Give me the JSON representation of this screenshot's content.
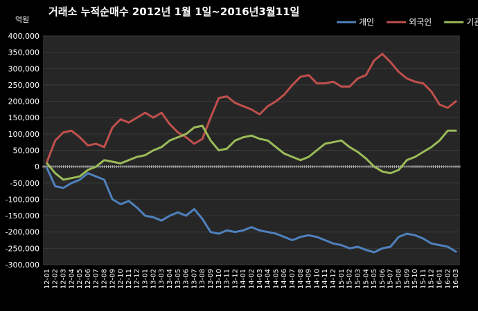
{
  "chart_data": {
    "type": "line",
    "title": "거래소 누적순매수 2012년 1월 1일~2016년3월11일",
    "ylabel": "억원",
    "xlabel": "",
    "ylim": [
      -300000,
      400000
    ],
    "yticks": [
      400000,
      350000,
      300000,
      250000,
      200000,
      150000,
      100000,
      50000,
      0,
      -50000,
      -100000,
      -150000,
      -200000,
      -250000,
      -300000
    ],
    "ytick_labels": [
      "400,000",
      "350,000",
      "300,000",
      "250,000",
      "200,000",
      "150,000",
      "100,000",
      "50,000",
      "0",
      "-50,000",
      "-100,000",
      "-150,000",
      "-200,000",
      "-250,000",
      "-300,000"
    ],
    "x": [
      "12-01",
      "12-02",
      "12-03",
      "12-04",
      "12-05",
      "12-06",
      "12-07",
      "12-08",
      "12-09",
      "12-10",
      "12-11",
      "12-12",
      "13-01",
      "13-02",
      "13-03",
      "13-04",
      "13-05",
      "13-06",
      "13-07",
      "13-08",
      "13-09",
      "13-10",
      "13-11",
      "13-12",
      "14-01",
      "14-02",
      "14-03",
      "14-04",
      "14-05",
      "14-06",
      "14-07",
      "14-08",
      "14-09",
      "14-10",
      "14-11",
      "14-12",
      "15-01",
      "15-02",
      "15-03",
      "15-04",
      "15-05",
      "15-06",
      "15-07",
      "15-08",
      "15-09",
      "15-10",
      "15-11",
      "15-12",
      "16-01",
      "16-02",
      "16-03"
    ],
    "grid": true,
    "legend_position": "top-right",
    "background": "#262626",
    "series": [
      {
        "name": "개인",
        "color": "#4f81bd",
        "values": [
          -5000,
          -60000,
          -65000,
          -50000,
          -40000,
          -20000,
          -30000,
          -40000,
          -100000,
          -115000,
          -105000,
          -125000,
          -150000,
          -155000,
          -165000,
          -150000,
          -140000,
          -150000,
          -130000,
          -160000,
          -200000,
          -205000,
          -195000,
          -200000,
          -195000,
          -185000,
          -195000,
          -200000,
          -205000,
          -215000,
          -225000,
          -215000,
          -210000,
          -215000,
          -225000,
          -235000,
          -240000,
          -250000,
          -245000,
          -255000,
          -262000,
          -250000,
          -245000,
          -215000,
          -205000,
          -210000,
          -220000,
          -235000,
          -240000,
          -245000,
          -260000
        ]
      },
      {
        "name": "외국인",
        "color": "#c0504d",
        "values": [
          15000,
          80000,
          105000,
          110000,
          90000,
          65000,
          70000,
          60000,
          120000,
          145000,
          135000,
          150000,
          165000,
          150000,
          165000,
          130000,
          105000,
          90000,
          70000,
          85000,
          150000,
          210000,
          215000,
          195000,
          185000,
          175000,
          160000,
          185000,
          200000,
          220000,
          250000,
          275000,
          280000,
          255000,
          255000,
          260000,
          245000,
          245000,
          270000,
          280000,
          325000,
          345000,
          320000,
          290000,
          270000,
          260000,
          255000,
          230000,
          190000,
          180000,
          200000
        ]
      },
      {
        "name": "기관",
        "color": "#9bbb59",
        "values": [
          10000,
          -20000,
          -40000,
          -35000,
          -30000,
          -10000,
          0,
          20000,
          15000,
          10000,
          20000,
          30000,
          35000,
          50000,
          60000,
          80000,
          90000,
          100000,
          120000,
          125000,
          80000,
          50000,
          55000,
          80000,
          90000,
          95000,
          85000,
          80000,
          60000,
          40000,
          30000,
          20000,
          30000,
          50000,
          70000,
          75000,
          80000,
          60000,
          45000,
          25000,
          0,
          -15000,
          -20000,
          -10000,
          20000,
          30000,
          45000,
          60000,
          80000,
          110000,
          110000
        ]
      }
    ]
  }
}
